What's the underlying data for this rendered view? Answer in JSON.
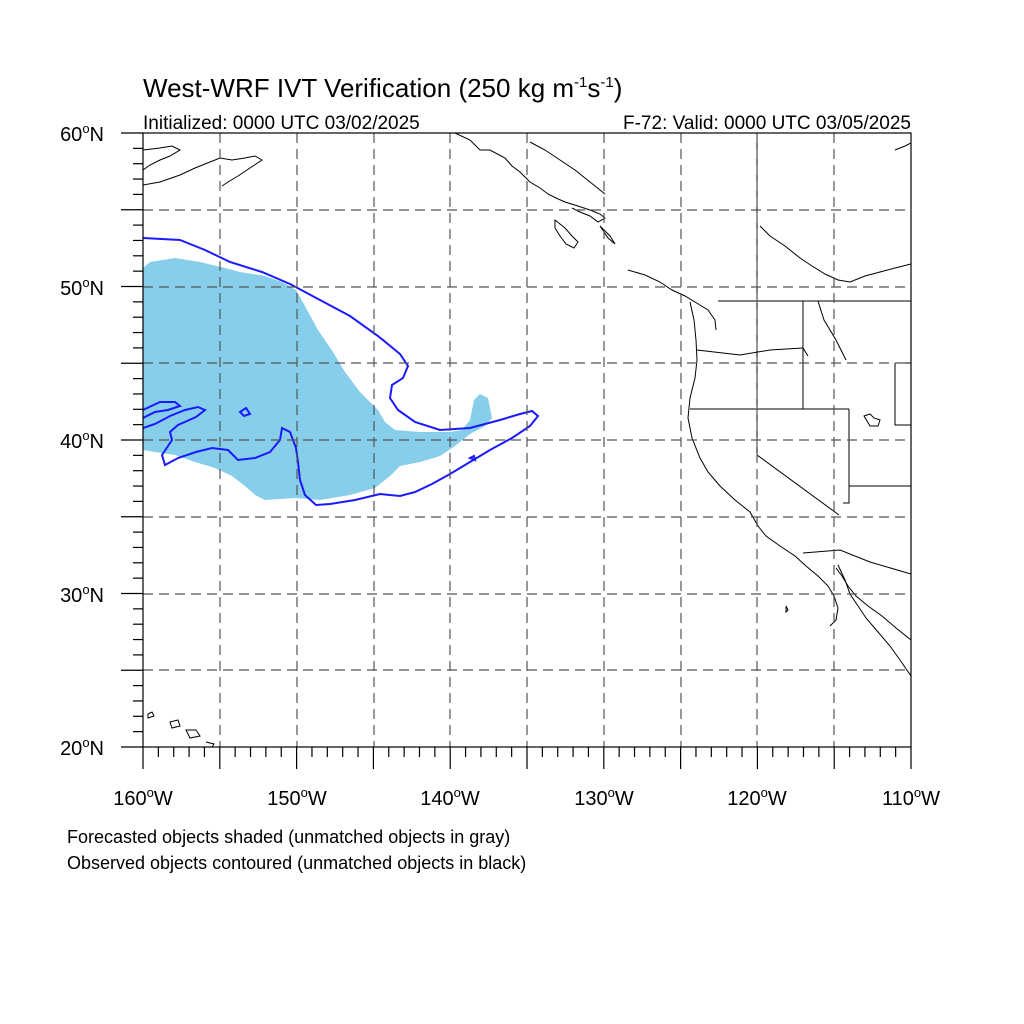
{
  "title": {
    "main": "West-WRF IVT Verification (250 kg m",
    "unit_exp1": "-1",
    "unit_mid": "s",
    "unit_exp2": "-1",
    "unit_close": ")"
  },
  "subtitle": {
    "initialized": "Initialized: 0000 UTC 03/02/2025",
    "valid": "F-72: Valid: 0000 UTC 03/05/2025"
  },
  "axes": {
    "lat_labels": [
      {
        "deg": "60",
        "sym": "o",
        "dir": "N"
      },
      {
        "deg": "50",
        "sym": "o",
        "dir": "N"
      },
      {
        "deg": "40",
        "sym": "o",
        "dir": "N"
      },
      {
        "deg": "30",
        "sym": "o",
        "dir": "N"
      },
      {
        "deg": "20",
        "sym": "o",
        "dir": "N"
      }
    ],
    "lon_labels": [
      {
        "deg": "160",
        "sym": "o",
        "dir": "W"
      },
      {
        "deg": "150",
        "sym": "o",
        "dir": "W"
      },
      {
        "deg": "140",
        "sym": "o",
        "dir": "W"
      },
      {
        "deg": "130",
        "sym": "o",
        "dir": "W"
      },
      {
        "deg": "120",
        "sym": "o",
        "dir": "W"
      },
      {
        "deg": "110",
        "sym": "o",
        "dir": "W"
      }
    ],
    "lon_range": [
      -160,
      -110
    ],
    "lat_range": [
      20,
      60
    ]
  },
  "footnotes": {
    "line1": "Forecasted objects shaded (unmatched objects in gray)",
    "line2": "Observed objects contoured (unmatched objects in black)"
  },
  "colors": {
    "forecast_shading": "#87ceeb",
    "observed_contour": "#1a1aff",
    "grid": "#555555",
    "coastline": "#000000"
  }
}
